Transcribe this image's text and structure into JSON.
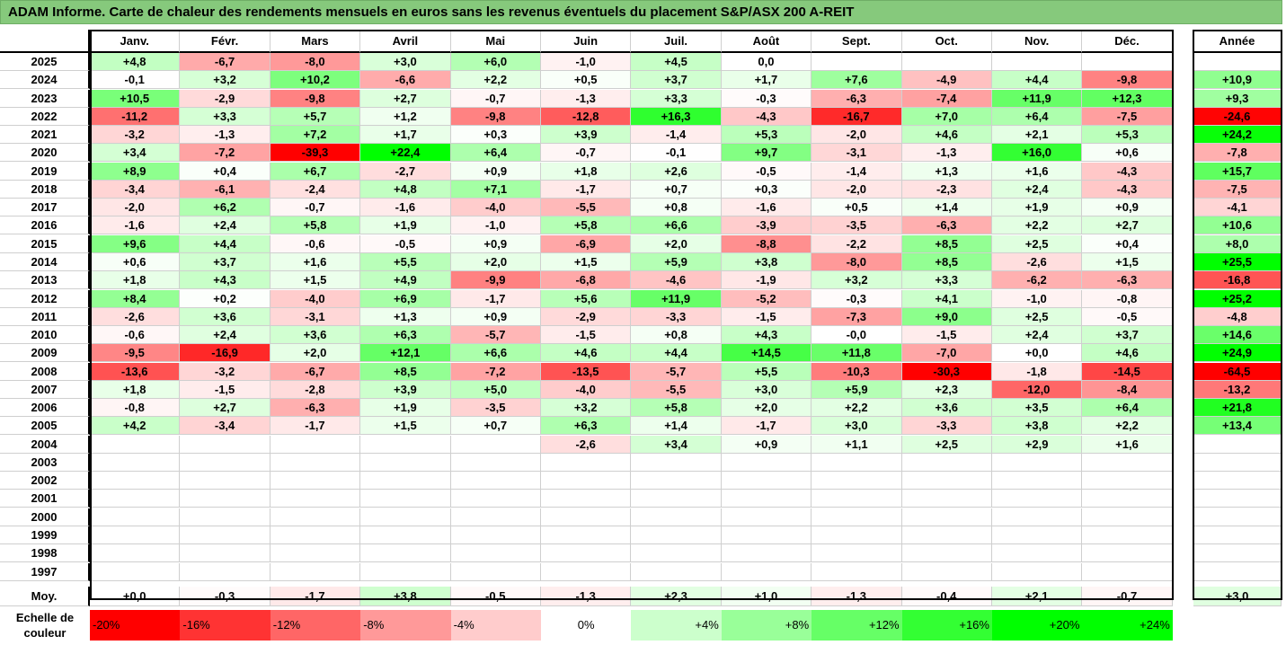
{
  "title": "ADAM Informe. Carte de chaleur des rendements mensuels en euros sans les revenus éventuels du placement S&P/ASX 200 A-REIT",
  "colors": {
    "title_bg": "#86c97c",
    "negative": "#ff0000",
    "positive": "#00ff00"
  },
  "chart_data": {
    "type": "heatmap",
    "title": "ADAM Informe. Carte de chaleur des rendements mensuels en euros sans les revenus éventuels du placement S&P/ASX 200 A-REIT",
    "columns": [
      "Janv.",
      "Févr.",
      "Mars",
      "Avril",
      "Mai",
      "Juin",
      "Juil.",
      "Août",
      "Sept.",
      "Oct.",
      "Nov.",
      "Déc."
    ],
    "year_column": "Année",
    "rows": [
      {
        "year": "2025",
        "m": [
          "+4,8",
          "-6,7",
          "-8,0",
          "+3,0",
          "+6,0",
          "-1,0",
          "+4,5",
          "0,0",
          "",
          "",
          "",
          ""
        ],
        "a": ""
      },
      {
        "year": "2024",
        "m": [
          "-0,1",
          "+3,2",
          "+10,2",
          "-6,6",
          "+2,2",
          "+0,5",
          "+3,7",
          "+1,7",
          "+7,6",
          "-4,9",
          "+4,4",
          "-9,8"
        ],
        "a": "+10,9"
      },
      {
        "year": "2023",
        "m": [
          "+10,5",
          "-2,9",
          "-9,8",
          "+2,7",
          "-0,7",
          "-1,3",
          "+3,3",
          "-0,3",
          "-6,3",
          "-7,4",
          "+11,9",
          "+12,3"
        ],
        "a": "+9,3"
      },
      {
        "year": "2022",
        "m": [
          "-11,2",
          "+3,3",
          "+5,7",
          "+1,2",
          "-9,8",
          "-12,8",
          "+16,3",
          "-4,3",
          "-16,7",
          "+7,0",
          "+6,4",
          "-7,5"
        ],
        "a": "-24,6"
      },
      {
        "year": "2021",
        "m": [
          "-3,2",
          "-1,3",
          "+7,2",
          "+1,7",
          "+0,3",
          "+3,9",
          "-1,4",
          "+5,3",
          "-2,0",
          "+4,6",
          "+2,1",
          "+5,3"
        ],
        "a": "+24,2"
      },
      {
        "year": "2020",
        "m": [
          "+3,4",
          "-7,2",
          "-39,3",
          "+22,4",
          "+6,4",
          "-0,7",
          "-0,1",
          "+9,7",
          "-3,1",
          "-1,3",
          "+16,0",
          "+0,6"
        ],
        "a": "-7,8"
      },
      {
        "year": "2019",
        "m": [
          "+8,9",
          "+0,4",
          "+6,7",
          "-2,7",
          "+0,9",
          "+1,8",
          "+2,6",
          "-0,5",
          "-1,4",
          "+1,3",
          "+1,6",
          "-4,3"
        ],
        "a": "+15,7"
      },
      {
        "year": "2018",
        "m": [
          "-3,4",
          "-6,1",
          "-2,4",
          "+4,8",
          "+7,1",
          "-1,7",
          "+0,7",
          "+0,3",
          "-2,0",
          "-2,3",
          "+2,4",
          "-4,3"
        ],
        "a": "-7,5"
      },
      {
        "year": "2017",
        "m": [
          "-2,0",
          "+6,2",
          "-0,7",
          "-1,6",
          "-4,0",
          "-5,5",
          "+0,8",
          "-1,6",
          "+0,5",
          "+1,4",
          "+1,9",
          "+0,9"
        ],
        "a": "-4,1"
      },
      {
        "year": "2016",
        "m": [
          "-1,6",
          "+2,4",
          "+5,8",
          "+1,9",
          "-1,0",
          "+5,8",
          "+6,6",
          "-3,9",
          "-3,5",
          "-6,3",
          "+2,2",
          "+2,7"
        ],
        "a": "+10,6"
      },
      {
        "year": "2015",
        "m": [
          "+9,6",
          "+4,4",
          "-0,6",
          "-0,5",
          "+0,9",
          "-6,9",
          "+2,0",
          "-8,8",
          "-2,2",
          "+8,5",
          "+2,5",
          "+0,4"
        ],
        "a": "+8,0"
      },
      {
        "year": "2014",
        "m": [
          "+0,6",
          "+3,7",
          "+1,6",
          "+5,5",
          "+2,0",
          "+1,5",
          "+5,9",
          "+3,8",
          "-8,0",
          "+8,5",
          "-2,6",
          "+1,5"
        ],
        "a": "+25,5"
      },
      {
        "year": "2013",
        "m": [
          "+1,8",
          "+4,3",
          "+1,5",
          "+4,9",
          "-9,9",
          "-6,8",
          "-4,6",
          "-1,9",
          "+3,2",
          "+3,3",
          "-6,2",
          "-6,3"
        ],
        "a": "-16,8"
      },
      {
        "year": "2012",
        "m": [
          "+8,4",
          "+0,2",
          "-4,0",
          "+6,9",
          "-1,7",
          "+5,6",
          "+11,9",
          "-5,2",
          "-0,3",
          "+4,1",
          "-1,0",
          "-0,8"
        ],
        "a": "+25,2"
      },
      {
        "year": "2011",
        "m": [
          "-2,6",
          "+3,6",
          "-3,1",
          "+1,3",
          "+0,9",
          "-2,9",
          "-3,3",
          "-1,5",
          "-7,3",
          "+9,0",
          "+2,5",
          "-0,5"
        ],
        "a": "-4,8"
      },
      {
        "year": "2010",
        "m": [
          "-0,6",
          "+2,4",
          "+3,6",
          "+6,3",
          "-5,7",
          "-1,5",
          "+0,8",
          "+4,3",
          "-0,0",
          "-1,5",
          "+2,4",
          "+3,7"
        ],
        "a": "+14,6"
      },
      {
        "year": "2009",
        "m": [
          "-9,5",
          "-16,9",
          "+2,0",
          "+12,1",
          "+6,6",
          "+4,6",
          "+4,4",
          "+14,5",
          "+11,8",
          "-7,0",
          "+0,0",
          "+4,6"
        ],
        "a": "+24,9"
      },
      {
        "year": "2008",
        "m": [
          "-13,6",
          "-3,2",
          "-6,7",
          "+8,5",
          "-7,2",
          "-13,5",
          "-5,7",
          "+5,5",
          "-10,3",
          "-30,3",
          "-1,8",
          "-14,5"
        ],
        "a": "-64,5"
      },
      {
        "year": "2007",
        "m": [
          "+1,8",
          "-1,5",
          "-2,8",
          "+3,9",
          "+5,0",
          "-4,0",
          "-5,5",
          "+3,0",
          "+5,9",
          "+2,3",
          "-12,0",
          "-8,4"
        ],
        "a": "-13,2"
      },
      {
        "year": "2006",
        "m": [
          "-0,8",
          "+2,7",
          "-6,3",
          "+1,9",
          "-3,5",
          "+3,2",
          "+5,8",
          "+2,0",
          "+2,2",
          "+3,6",
          "+3,5",
          "+6,4"
        ],
        "a": "+21,8"
      },
      {
        "year": "2005",
        "m": [
          "+4,2",
          "-3,4",
          "-1,7",
          "+1,5",
          "+0,7",
          "+6,3",
          "+1,4",
          "-1,7",
          "+3,0",
          "-3,3",
          "+3,8",
          "+2,2"
        ],
        "a": "+13,4"
      },
      {
        "year": "2004",
        "m": [
          "",
          "",
          "",
          "",
          "",
          "-2,6",
          "+3,4",
          "+0,9",
          "+1,1",
          "+2,5",
          "+2,9",
          "+1,6"
        ],
        "a": ""
      },
      {
        "year": "2003",
        "m": [
          "",
          "",
          "",
          "",
          "",
          "",
          "",
          "",
          "",
          "",
          "",
          ""
        ],
        "a": ""
      },
      {
        "year": "2002",
        "m": [
          "",
          "",
          "",
          "",
          "",
          "",
          "",
          "",
          "",
          "",
          "",
          ""
        ],
        "a": ""
      },
      {
        "year": "2001",
        "m": [
          "",
          "",
          "",
          "",
          "",
          "",
          "",
          "",
          "",
          "",
          "",
          ""
        ],
        "a": ""
      },
      {
        "year": "2000",
        "m": [
          "",
          "",
          "",
          "",
          "",
          "",
          "",
          "",
          "",
          "",
          "",
          ""
        ],
        "a": ""
      },
      {
        "year": "1999",
        "m": [
          "",
          "",
          "",
          "",
          "",
          "",
          "",
          "",
          "",
          "",
          "",
          ""
        ],
        "a": ""
      },
      {
        "year": "1998",
        "m": [
          "",
          "",
          "",
          "",
          "",
          "",
          "",
          "",
          "",
          "",
          "",
          ""
        ],
        "a": ""
      },
      {
        "year": "1997",
        "m": [
          "",
          "",
          "",
          "",
          "",
          "",
          "",
          "",
          "",
          "",
          "",
          ""
        ],
        "a": ""
      }
    ],
    "average": {
      "label": "Moy.",
      "m": [
        "+0,0",
        "-0,3",
        "-1,7",
        "+3,8",
        "-0,5",
        "-1,3",
        "+2,3",
        "+1,0",
        "-1,3",
        "-0,4",
        "+2,1",
        "-0,7"
      ],
      "a": "+3,0"
    },
    "scale": {
      "label_line1": "Echelle de",
      "label_line2": "couleur",
      "stops": [
        "-20%",
        "-16%",
        "-12%",
        "-8%",
        "-4%",
        "0%",
        "+4%",
        "+8%",
        "+12%",
        "+16%",
        "+20%",
        "+24%"
      ]
    }
  }
}
